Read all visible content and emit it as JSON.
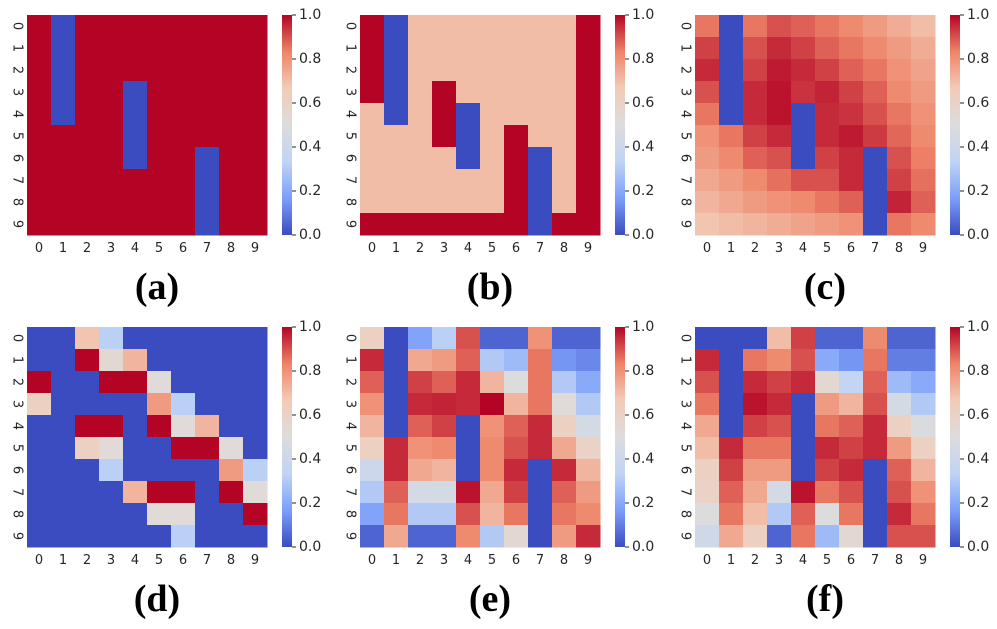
{
  "colormap": [
    "#3b4cc0",
    "#7b9ff9",
    "#c0d4f5",
    "#dddcdc",
    "#f2cbb7",
    "#ee8468",
    "#b40426"
  ],
  "chart_data": [
    {
      "type": "heatmap",
      "caption": "(a)",
      "x": [
        "0",
        "1",
        "2",
        "3",
        "4",
        "5",
        "6",
        "7",
        "8",
        "9"
      ],
      "y": [
        "0",
        "1",
        "2",
        "3",
        "4",
        "5",
        "6",
        "7",
        "8",
        "9"
      ],
      "vmin": 0.0,
      "vmax": 1.0,
      "colorbar_ticks": [
        "0.0",
        "0.2",
        "0.4",
        "0.6",
        "0.8",
        "1.0"
      ],
      "z": [
        [
          1,
          0,
          1,
          1,
          1,
          1,
          1,
          1,
          1,
          1
        ],
        [
          1,
          0,
          1,
          1,
          1,
          1,
          1,
          1,
          1,
          1
        ],
        [
          1,
          0,
          1,
          1,
          1,
          1,
          1,
          1,
          1,
          1
        ],
        [
          1,
          0,
          1,
          1,
          0,
          1,
          1,
          1,
          1,
          1
        ],
        [
          1,
          0,
          1,
          1,
          0,
          1,
          1,
          1,
          1,
          1
        ],
        [
          1,
          1,
          1,
          1,
          0,
          1,
          1,
          1,
          1,
          1
        ],
        [
          1,
          1,
          1,
          1,
          0,
          1,
          1,
          0,
          1,
          1
        ],
        [
          1,
          1,
          1,
          1,
          1,
          1,
          1,
          0,
          1,
          1
        ],
        [
          1,
          1,
          1,
          1,
          1,
          1,
          1,
          0,
          1,
          1
        ],
        [
          1,
          1,
          1,
          1,
          1,
          1,
          1,
          0,
          1,
          1
        ]
      ]
    },
    {
      "type": "heatmap",
      "caption": "(b)",
      "x": [
        "0",
        "1",
        "2",
        "3",
        "4",
        "5",
        "6",
        "7",
        "8",
        "9"
      ],
      "y": [
        "0",
        "1",
        "2",
        "3",
        "4",
        "5",
        "6",
        "7",
        "8",
        "9"
      ],
      "vmin": 0.0,
      "vmax": 1.0,
      "colorbar_ticks": [
        "0.0",
        "0.2",
        "0.4",
        "0.6",
        "0.8",
        "1.0"
      ],
      "z": [
        [
          1,
          0,
          0.7,
          0.7,
          0.7,
          0.7,
          0.7,
          0.7,
          0.7,
          1
        ],
        [
          1,
          0,
          0.7,
          0.7,
          0.7,
          0.7,
          0.7,
          0.7,
          0.7,
          1
        ],
        [
          1,
          0,
          0.7,
          0.7,
          0.7,
          0.7,
          0.7,
          0.7,
          0.7,
          1
        ],
        [
          1,
          0,
          0.7,
          1,
          0.7,
          0.7,
          0.7,
          0.7,
          0.7,
          1
        ],
        [
          0.7,
          0,
          0.7,
          1,
          0,
          0.7,
          0.7,
          0.7,
          0.7,
          1
        ],
        [
          0.7,
          0.7,
          0.7,
          1,
          0,
          0.7,
          1,
          0.7,
          0.7,
          1
        ],
        [
          0.7,
          0.7,
          0.7,
          0.7,
          0,
          0.7,
          1,
          0,
          0.7,
          1
        ],
        [
          0.7,
          0.7,
          0.7,
          0.7,
          0.7,
          0.7,
          1,
          0,
          0.7,
          1
        ],
        [
          0.7,
          0.7,
          0.7,
          0.7,
          0.7,
          0.7,
          1,
          0,
          0.7,
          1
        ],
        [
          1,
          1,
          1,
          1,
          1,
          1,
          1,
          0,
          1,
          1
        ]
      ]
    },
    {
      "type": "heatmap",
      "caption": "(c)",
      "x": [
        "0",
        "1",
        "2",
        "3",
        "4",
        "5",
        "6",
        "7",
        "8",
        "9"
      ],
      "y": [
        "0",
        "1",
        "2",
        "3",
        "4",
        "5",
        "6",
        "7",
        "8",
        "9"
      ],
      "vmin": 0.0,
      "vmax": 1.0,
      "colorbar_ticks": [
        "0.0",
        "0.2",
        "0.4",
        "0.6",
        "0.8",
        "1.0"
      ],
      "z": [
        [
          0.85,
          0,
          0.85,
          0.9,
          0.88,
          0.85,
          0.82,
          0.78,
          0.74,
          0.7
        ],
        [
          0.92,
          0,
          0.9,
          0.95,
          0.92,
          0.88,
          0.85,
          0.82,
          0.78,
          0.74
        ],
        [
          0.95,
          0,
          0.92,
          0.97,
          0.95,
          0.92,
          0.88,
          0.85,
          0.8,
          0.76
        ],
        [
          0.9,
          0,
          0.95,
          0.98,
          0.94,
          0.96,
          0.92,
          0.88,
          0.82,
          0.78
        ],
        [
          0.85,
          0,
          0.95,
          0.98,
          0,
          0.95,
          0.94,
          0.9,
          0.85,
          0.8
        ],
        [
          0.8,
          0.85,
          0.92,
          0.95,
          0,
          0.95,
          0.97,
          0.93,
          0.87,
          0.82
        ],
        [
          0.78,
          0.82,
          0.88,
          0.9,
          0,
          0.92,
          0.95,
          0,
          0.9,
          0.84
        ],
        [
          0.75,
          0.78,
          0.82,
          0.86,
          0.9,
          0.9,
          0.95,
          0,
          0.92,
          0.86
        ],
        [
          0.72,
          0.75,
          0.78,
          0.8,
          0.82,
          0.85,
          0.88,
          0,
          0.96,
          0.88
        ],
        [
          0.68,
          0.7,
          0.72,
          0.74,
          0.76,
          0.78,
          0.8,
          0,
          0.85,
          0.82
        ]
      ]
    },
    {
      "type": "heatmap",
      "caption": "(d)",
      "x": [
        "0",
        "1",
        "2",
        "3",
        "4",
        "5",
        "6",
        "7",
        "8",
        "9"
      ],
      "y": [
        "0",
        "1",
        "2",
        "3",
        "4",
        "5",
        "6",
        "7",
        "8",
        "9"
      ],
      "vmin": 0.0,
      "vmax": 1.0,
      "colorbar_ticks": [
        "0.0",
        "0.2",
        "0.4",
        "0.6",
        "0.8",
        "1.0"
      ],
      "z": [
        [
          0,
          0,
          0.68,
          0.32,
          0,
          0,
          0,
          0,
          0,
          0
        ],
        [
          0,
          0,
          1,
          0.55,
          0.72,
          0,
          0,
          0,
          0,
          0
        ],
        [
          1,
          0,
          0,
          1,
          1,
          0.52,
          0,
          0,
          0,
          0
        ],
        [
          0.62,
          0,
          0,
          0,
          0,
          0.78,
          0.32,
          0,
          0,
          0
        ],
        [
          0,
          0,
          1,
          1,
          0,
          1,
          0.52,
          0.72,
          0,
          0
        ],
        [
          0,
          0,
          0.62,
          0.52,
          0,
          0,
          1,
          1,
          0.52,
          0
        ],
        [
          0,
          0,
          0,
          0.32,
          0,
          0,
          0,
          0,
          0.78,
          0.32
        ],
        [
          0,
          0,
          0,
          0,
          0.72,
          1,
          1,
          0,
          1,
          0.52
        ],
        [
          0,
          0,
          0,
          0,
          0,
          0.52,
          0.52,
          0,
          0,
          1
        ],
        [
          0,
          0,
          0,
          0,
          0,
          0,
          0.32,
          0,
          0,
          0
        ]
      ]
    },
    {
      "type": "heatmap",
      "caption": "(e)",
      "x": [
        "0",
        "1",
        "2",
        "3",
        "4",
        "5",
        "6",
        "7",
        "8",
        "9"
      ],
      "y": [
        "0",
        "1",
        "2",
        "3",
        "4",
        "5",
        "6",
        "7",
        "8",
        "9"
      ],
      "vmin": 0.0,
      "vmax": 1.0,
      "colorbar_ticks": [
        "0.0",
        "0.2",
        "0.4",
        "0.6",
        "0.8",
        "1.0"
      ],
      "z": [
        [
          0.62,
          0,
          0.18,
          0.32,
          0.9,
          0.05,
          0.05,
          0.8,
          0.05,
          0.05
        ],
        [
          0.95,
          0,
          0.75,
          0.78,
          0.88,
          0.3,
          0.25,
          0.85,
          0.15,
          0.12
        ],
        [
          0.88,
          0,
          0.92,
          0.88,
          0.95,
          0.72,
          0.5,
          0.85,
          0.3,
          0.2
        ],
        [
          0.8,
          0,
          0.95,
          0.96,
          0.95,
          1,
          0.72,
          0.85,
          0.52,
          0.3
        ],
        [
          0.72,
          0,
          0.88,
          0.92,
          0,
          0.8,
          0.88,
          0.95,
          0.62,
          0.45
        ],
        [
          0.62,
          0.95,
          0.8,
          0.82,
          0,
          0.82,
          0.9,
          0.95,
          0.75,
          0.6
        ],
        [
          0.4,
          0.95,
          0.75,
          0.72,
          0,
          0.82,
          0.95,
          0,
          0.95,
          0.72
        ],
        [
          0.3,
          0.88,
          0.45,
          0.45,
          0.98,
          0.75,
          0.92,
          0,
          0.88,
          0.78
        ],
        [
          0.18,
          0.85,
          0.3,
          0.3,
          0.9,
          0.72,
          0.85,
          0,
          0.85,
          0.82
        ],
        [
          0.05,
          0.75,
          0.05,
          0.05,
          0.82,
          0.3,
          0.55,
          0,
          0.78,
          0.95
        ]
      ]
    },
    {
      "type": "heatmap",
      "caption": "(f)",
      "x": [
        "0",
        "1",
        "2",
        "3",
        "4",
        "5",
        "6",
        "7",
        "8",
        "9"
      ],
      "y": [
        "0",
        "1",
        "2",
        "3",
        "4",
        "5",
        "6",
        "7",
        "8",
        "9"
      ],
      "vmin": 0.0,
      "vmax": 1.0,
      "colorbar_ticks": [
        "0.0",
        "0.2",
        "0.4",
        "0.6",
        "0.8",
        "1.0"
      ],
      "z": [
        [
          0,
          0,
          0,
          0.7,
          0.92,
          0.05,
          0.05,
          0.82,
          0.05,
          0.05
        ],
        [
          0.95,
          0,
          0.85,
          0.82,
          0.9,
          0.2,
          0.15,
          0.85,
          0.1,
          0.1
        ],
        [
          0.9,
          0,
          0.95,
          0.92,
          0.95,
          0.55,
          0.35,
          0.88,
          0.25,
          0.2
        ],
        [
          0.85,
          0,
          0.98,
          0.95,
          0,
          0.78,
          0.72,
          0.9,
          0.45,
          0.3
        ],
        [
          0.75,
          0,
          0.92,
          0.9,
          0,
          0.85,
          0.88,
          0.95,
          0.62,
          0.48
        ],
        [
          0.7,
          0.95,
          0.85,
          0.85,
          0,
          0.95,
          0.92,
          0.95,
          0.78,
          0.62
        ],
        [
          0.62,
          0.92,
          0.78,
          0.78,
          0,
          0.92,
          0.95,
          0,
          0.88,
          0.72
        ],
        [
          0.6,
          0.88,
          0.75,
          0.45,
          0.98,
          0.85,
          0.9,
          0,
          0.9,
          0.8
        ],
        [
          0.5,
          0.85,
          0.7,
          0.3,
          0.88,
          0.5,
          0.85,
          0,
          0.95,
          0.85
        ],
        [
          0.42,
          0.75,
          0.62,
          0.05,
          0.85,
          0.25,
          0.55,
          0,
          0.9,
          0.9
        ]
      ]
    }
  ]
}
